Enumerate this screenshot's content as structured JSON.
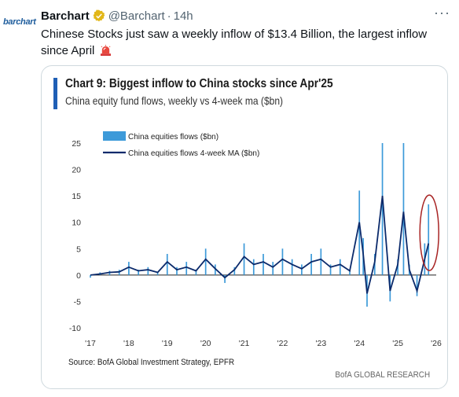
{
  "tweet": {
    "avatar_label": "barchart",
    "name": "Barchart",
    "handle": "@Barchart",
    "separator": "·",
    "time": "14h",
    "more_icon": "more-dots-icon",
    "text": "Chinese Stocks just saw a weekly inflow of $13.4 Billion, the largest inflow since April",
    "emoji": "police-siren-icon",
    "colors": {
      "text": "#0f1419",
      "muted": "#536471",
      "verified": "#e2b719"
    }
  },
  "chart_data": {
    "type": "bar",
    "title": "Chart 9: Biggest inflow to China stocks since Apr'25",
    "subtitle": "China equity fund flows, weekly vs 4-week ma ($bn)",
    "x_ticks": [
      "'17",
      "'18",
      "'19",
      "'20",
      "'21",
      "'22",
      "'23",
      "'24",
      "'25",
      "'26"
    ],
    "y_ticks": [
      25,
      20,
      15,
      10,
      5,
      0,
      -5,
      -10
    ],
    "ylim": [
      -10,
      25
    ],
    "xlim": [
      2017,
      2026
    ],
    "legend_position": "top-left",
    "series": [
      {
        "name": "China equities flows ($bn)",
        "type": "bar",
        "color": "#3d9ad9",
        "x": [
          2017.0,
          2017.25,
          2017.5,
          2017.75,
          2018.0,
          2018.25,
          2018.5,
          2018.75,
          2019.0,
          2019.25,
          2019.5,
          2019.75,
          2020.0,
          2020.25,
          2020.5,
          2020.75,
          2021.0,
          2021.25,
          2021.5,
          2021.75,
          2022.0,
          2022.25,
          2022.5,
          2022.75,
          2023.0,
          2023.25,
          2023.5,
          2023.75,
          2024.0,
          2024.1,
          2024.2,
          2024.4,
          2024.6,
          2024.8,
          2025.0,
          2025.15,
          2025.3,
          2025.5,
          2025.7,
          2025.8
        ],
        "values": [
          -0.5,
          0.5,
          0.8,
          1.0,
          2.5,
          1.0,
          1.5,
          0.5,
          4.0,
          1.5,
          2.5,
          1.0,
          5.0,
          2.0,
          -1.5,
          1.5,
          6.0,
          3.0,
          4.0,
          2.5,
          5.0,
          3.0,
          2.0,
          4.0,
          5.0,
          2.0,
          3.0,
          1.0,
          16.0,
          7.0,
          -6.0,
          4.0,
          25.0,
          -5.0,
          3.0,
          25.0,
          2.0,
          -4.0,
          6.0,
          13.4
        ]
      },
      {
        "name": "China equities flows 4-week MA ($bn)",
        "type": "line",
        "color": "#0b2a6b",
        "x": [
          2017.0,
          2017.25,
          2017.5,
          2017.75,
          2018.0,
          2018.25,
          2018.5,
          2018.75,
          2019.0,
          2019.25,
          2019.5,
          2019.75,
          2020.0,
          2020.25,
          2020.5,
          2020.75,
          2021.0,
          2021.25,
          2021.5,
          2021.75,
          2022.0,
          2022.25,
          2022.5,
          2022.75,
          2023.0,
          2023.25,
          2023.5,
          2023.75,
          2024.0,
          2024.1,
          2024.2,
          2024.4,
          2024.6,
          2024.8,
          2025.0,
          2025.15,
          2025.3,
          2025.5,
          2025.7,
          2025.8
        ],
        "values": [
          0.0,
          0.2,
          0.5,
          0.6,
          1.5,
          0.8,
          1.0,
          0.5,
          2.5,
          1.0,
          1.5,
          0.8,
          3.0,
          1.2,
          -0.5,
          1.0,
          3.5,
          2.0,
          2.5,
          1.5,
          3.0,
          2.0,
          1.2,
          2.5,
          3.0,
          1.5,
          2.0,
          0.8,
          10.0,
          4.0,
          -3.5,
          2.5,
          15.0,
          -3.0,
          2.0,
          12.0,
          1.0,
          -3.0,
          3.0,
          6.0
        ]
      }
    ],
    "annotations": [
      {
        "type": "ellipse",
        "target_x": 2025.8,
        "color": "#a82424"
      }
    ],
    "source": "Source: BofA Global Investment Strategy, EPFR",
    "brand": "BofA GLOBAL RESEARCH",
    "accent_color": "#1f5fb5"
  }
}
